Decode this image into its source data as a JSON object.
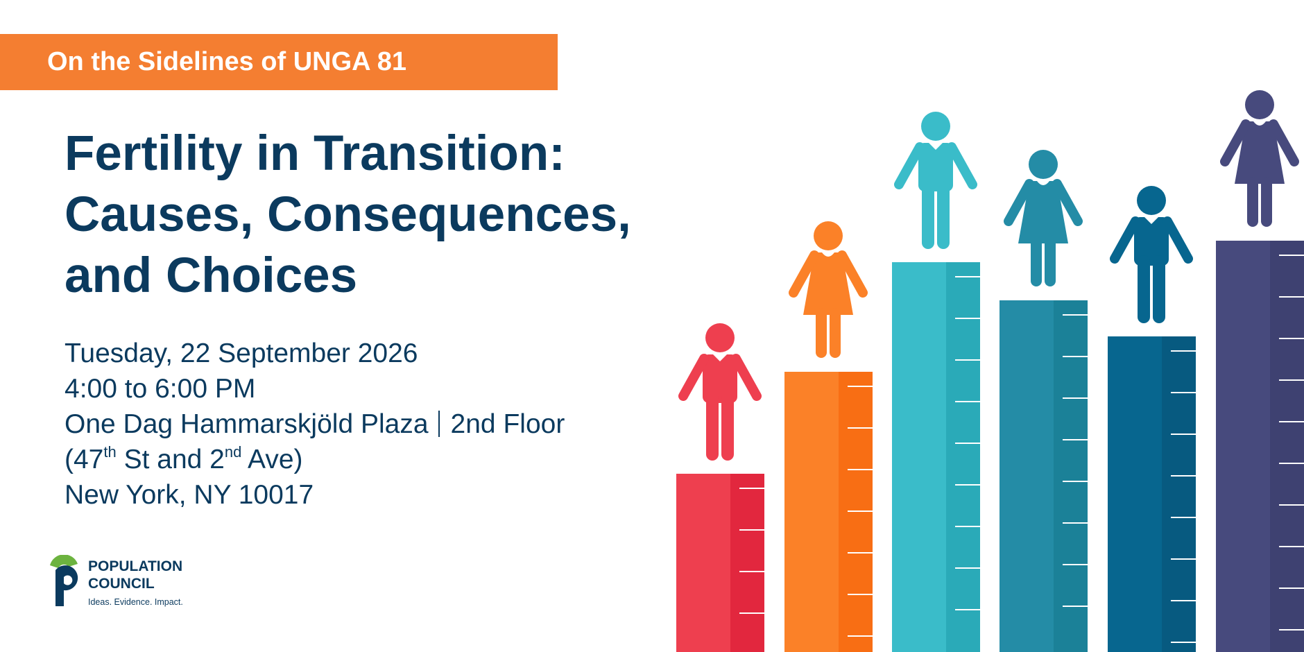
{
  "banner": {
    "text": "On the Sidelines of UNGA 81"
  },
  "title": {
    "line1": "Fertility in Transition:",
    "line2": "Causes, Consequences,",
    "line3": "and Choices"
  },
  "event": {
    "date": "Tuesday, 22 September 2026",
    "time": "4:00 to 6:00 PM",
    "venue_building": "One Dag Hammarskjöld Plaza",
    "venue_floor": "2nd Floor",
    "cross_street_1_num": "(47",
    "cross_street_1_sup": "th",
    "cross_street_1_rest": " St and 2",
    "cross_street_2_sup": "nd",
    "cross_street_2_rest": " Ave)",
    "city": "New York, NY 10017"
  },
  "logo": {
    "name_line1": "POPULATION",
    "name_line2": "COUNCIL",
    "tagline": "Ideas. Evidence. Impact."
  },
  "illustration": {
    "bars": [
      {
        "color": "#EE3F4F",
        "shade": "#E2273E",
        "figure": "man"
      },
      {
        "color": "#FB8128",
        "shade": "#F86E14",
        "figure": "woman"
      },
      {
        "color": "#3ABCC9",
        "shade": "#2AAAB8",
        "figure": "man"
      },
      {
        "color": "#248CA6",
        "shade": "#1B8198",
        "figure": "woman"
      },
      {
        "color": "#07668F",
        "shade": "#075A80",
        "figure": "man"
      },
      {
        "color": "#474A7D",
        "shade": "#3E4171",
        "figure": "woman"
      }
    ]
  }
}
